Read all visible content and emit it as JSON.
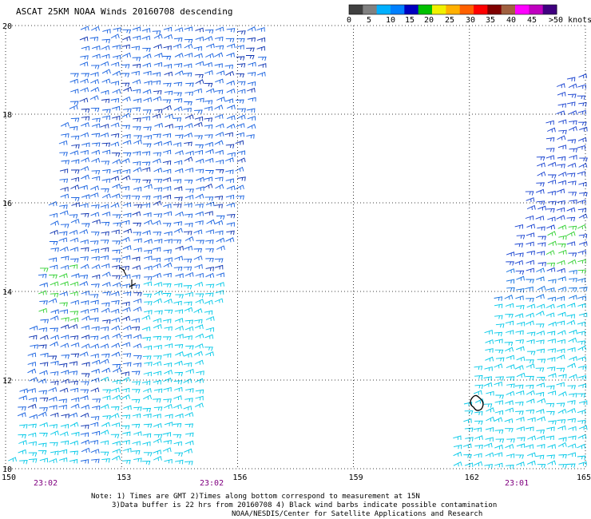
{
  "title": "ASCAT 25KM NOAA Winds 20160708 descending",
  "legend": {
    "colors": [
      "#404040",
      "#808080",
      "#00b0ff",
      "#0080ff",
      "#0000c0",
      "#00c000",
      "#f0f000",
      "#ffb000",
      "#ff6000",
      "#ff0000",
      "#800000",
      "#a06040",
      "#ff00ff",
      "#c000c0",
      "#400080"
    ],
    "labels": [
      "0",
      "5",
      "10",
      "15",
      "20",
      "25",
      "30",
      "35",
      "40",
      "45",
      ">50 knots"
    ]
  },
  "axes": {
    "lat_ticks": [
      "20",
      "18",
      "16",
      "14",
      "12",
      "10"
    ],
    "lon_ticks": [
      "150",
      "153",
      "156",
      "159",
      "162",
      "165"
    ],
    "lat_range": [
      10,
      20
    ],
    "lon_range": [
      150,
      165
    ],
    "grid": "dotted"
  },
  "pass_times": [
    "23:02",
    "23:02",
    "23:01"
  ],
  "notes": {
    "line1": "Note: 1) Times are GMT 2)Times along bottom correspond to measurement at 15N",
    "line2": "3)Data buffer is 22 hrs from 20160708 4) Black wind barbs indicate possible contamination",
    "line3": "NOAA/NESDIS/Center for Satellite Applications and Research"
  },
  "swaths": [
    {
      "name": "west-swath",
      "color_blue": "#1560e0",
      "color_cyan": "#00c8e8",
      "color_green": "#30d030"
    },
    {
      "name": "east-swath",
      "color_blue": "#1540d0",
      "color_cyan": "#00c8e8",
      "color_green": "#30d030"
    }
  ]
}
